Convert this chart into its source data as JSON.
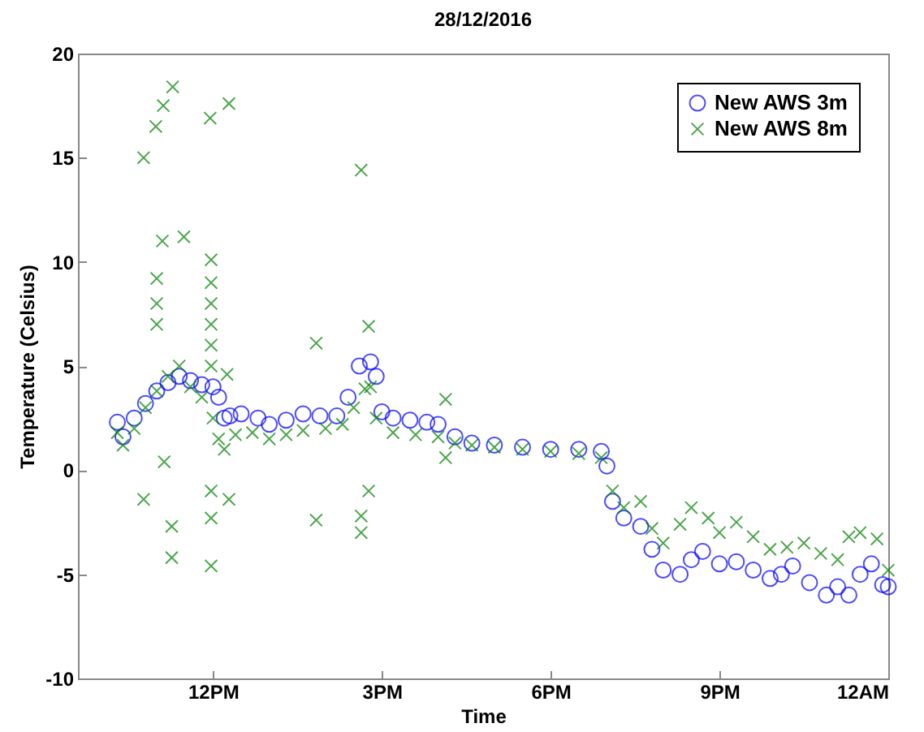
{
  "chart_data": {
    "type": "scatter",
    "title": "28/12/2016",
    "xlabel": "Time",
    "ylabel": "Temperature (Celsius)",
    "xlim": [
      "2016-12-28T09:36",
      "2016-12-29T00:00"
    ],
    "xticks": [
      {
        "value": "2016-12-28T12:00",
        "label": "12PM"
      },
      {
        "value": "2016-12-28T15:00",
        "label": "3PM"
      },
      {
        "value": "2016-12-28T18:00",
        "label": "6PM"
      },
      {
        "value": "2016-12-28T21:00",
        "label": "9PM"
      },
      {
        "value": "2016-12-29T00:00",
        "label": "12AM"
      }
    ],
    "ylim": [
      -10,
      20
    ],
    "yticks": [
      -10,
      -5,
      0,
      5,
      10,
      15,
      20
    ],
    "grid": false,
    "legend": "top right",
    "series": [
      {
        "name": "New AWS 3m",
        "color": "#0000ff",
        "marker": "circle",
        "x": [
          "2016-12-28T10:18",
          "2016-12-28T10:24",
          "2016-12-28T10:36",
          "2016-12-28T10:48",
          "2016-12-28T11:00",
          "2016-12-28T11:12",
          "2016-12-28T11:24",
          "2016-12-28T11:36",
          "2016-12-28T11:48",
          "2016-12-28T12:00",
          "2016-12-28T12:06",
          "2016-12-28T12:12",
          "2016-12-28T12:18",
          "2016-12-28T12:30",
          "2016-12-28T12:48",
          "2016-12-28T13:00",
          "2016-12-28T13:18",
          "2016-12-28T13:36",
          "2016-12-28T13:54",
          "2016-12-28T14:12",
          "2016-12-28T14:24",
          "2016-12-28T14:36",
          "2016-12-28T14:48",
          "2016-12-28T14:54",
          "2016-12-28T15:00",
          "2016-12-28T15:12",
          "2016-12-28T15:30",
          "2016-12-28T15:48",
          "2016-12-28T16:00",
          "2016-12-28T16:18",
          "2016-12-28T16:36",
          "2016-12-28T17:00",
          "2016-12-28T17:30",
          "2016-12-28T18:00",
          "2016-12-28T18:30",
          "2016-12-28T18:54",
          "2016-12-28T19:00",
          "2016-12-28T19:06",
          "2016-12-28T19:18",
          "2016-12-28T19:36",
          "2016-12-28T19:48",
          "2016-12-28T20:00",
          "2016-12-28T20:18",
          "2016-12-28T20:30",
          "2016-12-28T20:42",
          "2016-12-28T21:00",
          "2016-12-28T21:18",
          "2016-12-28T21:36",
          "2016-12-28T21:54",
          "2016-12-28T22:06",
          "2016-12-28T22:18",
          "2016-12-28T22:36",
          "2016-12-28T22:54",
          "2016-12-28T23:06",
          "2016-12-28T23:18",
          "2016-12-28T23:30",
          "2016-12-28T23:42",
          "2016-12-28T23:54",
          "2016-12-29T00:00"
        ],
        "values": [
          2.3,
          1.6,
          2.5,
          3.2,
          3.8,
          4.2,
          4.5,
          4.3,
          4.1,
          4.0,
          3.5,
          2.5,
          2.6,
          2.7,
          2.5,
          2.2,
          2.4,
          2.7,
          2.6,
          2.6,
          3.5,
          5.0,
          5.2,
          4.5,
          2.8,
          2.5,
          2.4,
          2.3,
          2.2,
          1.6,
          1.3,
          1.2,
          1.1,
          1.0,
          1.0,
          0.9,
          0.2,
          -1.5,
          -2.3,
          -2.7,
          -3.8,
          -4.8,
          -5.0,
          -4.3,
          -3.9,
          -4.5,
          -4.4,
          -4.8,
          -5.2,
          -5.0,
          -4.6,
          -5.4,
          -6.0,
          -5.6,
          -6.0,
          -5.0,
          -4.5,
          -5.5,
          -5.6
        ]
      },
      {
        "name": "New AWS 8m",
        "color": "#008000",
        "marker": "cross",
        "x": [
          "2016-12-28T10:18",
          "2016-12-28T10:24",
          "2016-12-28T10:36",
          "2016-12-28T10:48",
          "2016-12-28T11:00",
          "2016-12-28T11:12",
          "2016-12-28T11:24",
          "2016-12-28T11:36",
          "2016-12-28T11:48",
          "2016-12-28T12:00",
          "2016-12-28T12:06",
          "2016-12-28T12:12",
          "2016-12-28T12:24",
          "2016-12-28T12:42",
          "2016-12-28T13:00",
          "2016-12-28T13:18",
          "2016-12-28T13:36",
          "2016-12-28T14:00",
          "2016-12-28T14:18",
          "2016-12-28T14:30",
          "2016-12-28T14:42",
          "2016-12-28T14:48",
          "2016-12-28T14:54",
          "2016-12-28T15:12",
          "2016-12-28T15:36",
          "2016-12-28T16:00",
          "2016-12-28T16:18",
          "2016-12-28T16:36",
          "2016-12-28T17:00",
          "2016-12-28T17:30",
          "2016-12-28T18:00",
          "2016-12-28T18:30",
          "2016-12-28T18:54",
          "2016-12-28T19:06",
          "2016-12-28T19:18",
          "2016-12-28T19:36",
          "2016-12-28T19:48",
          "2016-12-28T20:00",
          "2016-12-28T20:18",
          "2016-12-28T20:30",
          "2016-12-28T20:48",
          "2016-12-28T21:00",
          "2016-12-28T21:18",
          "2016-12-28T21:36",
          "2016-12-28T21:54",
          "2016-12-28T22:12",
          "2016-12-28T22:30",
          "2016-12-28T22:48",
          "2016-12-28T23:06",
          "2016-12-28T23:18",
          "2016-12-28T23:30",
          "2016-12-28T23:48",
          "2016-12-29T00:00",
          "2016-12-28T10:46",
          "2016-12-28T10:59",
          "2016-12-28T11:07",
          "2016-12-28T11:17",
          "2016-12-28T11:29",
          "2016-12-28T11:06",
          "2016-12-28T10:46",
          "2016-12-28T11:16",
          "2016-12-28T11:16",
          "2016-12-28T11:57",
          "2016-12-28T12:17",
          "2016-12-28T11:58",
          "2016-12-28T11:58",
          "2016-12-28T11:58",
          "2016-12-28T11:58",
          "2016-12-28T11:58",
          "2016-12-28T11:58",
          "2016-12-28T11:58",
          "2016-12-28T11:58",
          "2016-12-28T11:58",
          "2016-12-28T12:15",
          "2016-12-28T12:17",
          "2016-12-28T13:50",
          "2016-12-28T13:50",
          "2016-12-28T14:38",
          "2016-12-28T14:46",
          "2016-12-28T14:38",
          "2016-12-28T14:38",
          "2016-12-28T14:46",
          "2016-12-28T16:08",
          "2016-12-28T16:08",
          "2016-12-28T11:00",
          "2016-12-28T11:00",
          "2016-12-28T11:00",
          "2016-12-28T11:08"
        ],
        "values": [
          1.8,
          1.2,
          2.0,
          3.0,
          3.8,
          4.5,
          5.0,
          4.0,
          3.5,
          2.5,
          1.5,
          1.0,
          1.7,
          1.8,
          1.5,
          1.7,
          1.9,
          2.0,
          2.2,
          3.0,
          3.9,
          4.0,
          2.5,
          1.8,
          1.7,
          1.6,
          1.3,
          1.2,
          1.1,
          1.0,
          0.9,
          0.8,
          0.6,
          -1.0,
          -1.8,
          -1.5,
          -2.8,
          -3.5,
          -2.6,
          -1.8,
          -2.3,
          -3.0,
          -2.5,
          -3.2,
          -3.8,
          -3.7,
          -3.5,
          -4.0,
          -4.3,
          -3.2,
          -3.0,
          -3.3,
          -4.8,
          15.0,
          16.5,
          17.5,
          18.4,
          11.2,
          11.0,
          -1.4,
          -2.7,
          -4.2,
          16.9,
          17.6,
          10.1,
          -4.6,
          -2.3,
          9.0,
          8.0,
          7.0,
          6.0,
          5.0,
          -1.0,
          4.6,
          -1.4,
          6.1,
          -2.4,
          14.4,
          6.9,
          -2.2,
          -3.0,
          -1.0,
          3.4,
          0.6,
          9.2,
          8.0,
          7.0,
          0.4
        ]
      }
    ]
  }
}
